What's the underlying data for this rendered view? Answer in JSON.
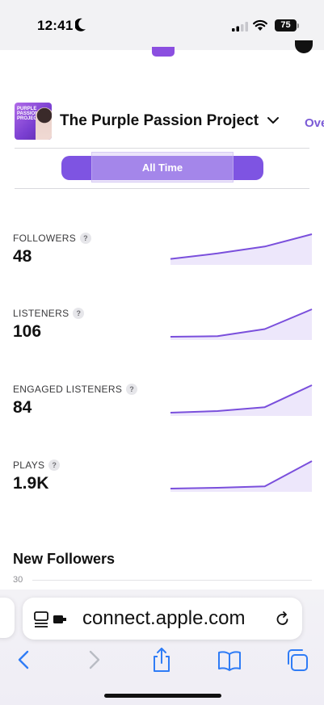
{
  "status_bar": {
    "time": "12:41",
    "battery": "75"
  },
  "podcast": {
    "title": "The Purple Passion Project",
    "artwork_text": "PURPLE PASSION PROJECT",
    "next_tab_label": "Ove"
  },
  "filter": {
    "selected": "All Time"
  },
  "metrics": [
    {
      "label": "FOLLOWERS",
      "help": "?",
      "value": "48",
      "trend": [
        0.1,
        0.3,
        0.55,
        1.0
      ]
    },
    {
      "label": "LISTENERS",
      "help": "?",
      "value": "106",
      "trend": [
        0.0,
        0.02,
        0.28,
        1.0
      ]
    },
    {
      "label": "ENGAGED LISTENERS",
      "help": "?",
      "value": "84",
      "trend": [
        0.0,
        0.06,
        0.2,
        1.0
      ]
    },
    {
      "label": "PLAYS",
      "help": "?",
      "value": "1.9K",
      "trend": [
        0.0,
        0.03,
        0.08,
        1.0
      ]
    }
  ],
  "new_followers": {
    "title": "New Followers",
    "y_tick": "30"
  },
  "browser": {
    "url": "connect.apple.com"
  },
  "icons": {
    "back": "chevron-left-icon",
    "forward": "chevron-right-icon",
    "share": "share-icon",
    "bookmarks": "book-icon",
    "tabs": "tabs-icon"
  },
  "colors": {
    "accent": "#7e54e2",
    "line": "#7a4fdc",
    "link": "#7b5bd6",
    "toolbar_icon": "#2f7cf6"
  }
}
